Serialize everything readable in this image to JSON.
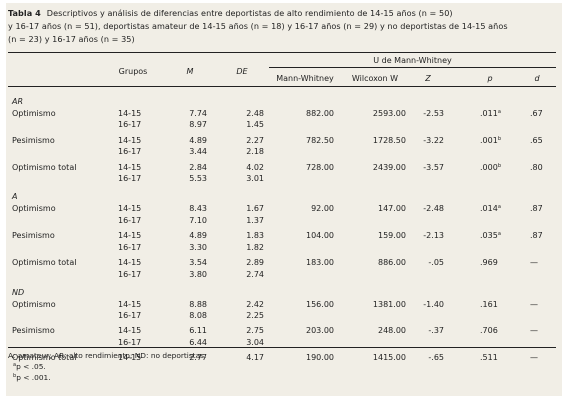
{
  "caption": {
    "label": "Tabla 4",
    "line1": "Descriptivos y análisis de diferencias entre deportistas de alto rendimiento de 14-15 años (n = 50)",
    "line2": "y 16-17 años (n = 51), deportistas amateur de 14-15 años (n = 18) y 16-17 años (n = 29) y no deportistas de 14-15 años",
    "line3": "(n = 23) y 16-17 años (n = 35)"
  },
  "header": {
    "grupos": "Grupos",
    "m": "M",
    "de": "DE",
    "u_title": "U de Mann-Whitney",
    "mann": "Mann-Whitney",
    "wilcoxon": "Wilcoxon W",
    "z": "Z",
    "p": "p",
    "d": "d"
  },
  "sections": [
    {
      "label": "AR",
      "variables": [
        {
          "name": "Optimismo",
          "rows": [
            {
              "grupo": "14-15",
              "m": "7.74",
              "de": "2.48",
              "mw": "882.00",
              "w": "2593.00",
              "z": "-2.53",
              "p": ".011",
              "sup": "a",
              "d": ".67"
            },
            {
              "grupo": "16-17",
              "m": "8.97",
              "de": "1.45"
            }
          ]
        },
        {
          "name": "Pesimismo",
          "rows": [
            {
              "grupo": "14-15",
              "m": "4.89",
              "de": "2.27",
              "mw": "782.50",
              "w": "1728.50",
              "z": "-3.22",
              "p": ".001",
              "sup": "b",
              "d": ".65"
            },
            {
              "grupo": "16-17",
              "m": "3.44",
              "de": "2.18"
            }
          ]
        },
        {
          "name": "Optimismo total",
          "rows": [
            {
              "grupo": "14-15",
              "m": "2.84",
              "de": "4.02",
              "mw": "728.00",
              "w": "2439.00",
              "z": "-3.57",
              "p": ".000",
              "sup": "b",
              "d": ".80"
            },
            {
              "grupo": "16-17",
              "m": "5.53",
              "de": "3.01"
            }
          ]
        }
      ]
    },
    {
      "label": "A",
      "variables": [
        {
          "name": "Optimismo",
          "rows": [
            {
              "grupo": "14-15",
              "m": "8.43",
              "de": "1.67",
              "mw": "92.00",
              "w": "147.00",
              "z": "-2.48",
              "p": ".014",
              "sup": "a",
              "d": ".87"
            },
            {
              "grupo": "16-17",
              "m": "7.10",
              "de": "1.37"
            }
          ]
        },
        {
          "name": "Pesimismo",
          "rows": [
            {
              "grupo": "14-15",
              "m": "4.89",
              "de": "1.83",
              "mw": "104.00",
              "w": "159.00",
              "z": "-2.13",
              "p": ".035",
              "sup": "a",
              "d": ".87"
            },
            {
              "grupo": "16-17",
              "m": "3.30",
              "de": "1.82"
            }
          ]
        },
        {
          "name": "Optimismo total",
          "rows": [
            {
              "grupo": "14-15",
              "m": "3.54",
              "de": "2.89",
              "mw": "183.00",
              "w": "886.00",
              "z": "-.05",
              "p": ".969",
              "sup": "",
              "d": "—"
            },
            {
              "grupo": "16-17",
              "m": "3.80",
              "de": "2.74"
            }
          ]
        }
      ]
    },
    {
      "label": "ND",
      "variables": [
        {
          "name": "Optimismo",
          "rows": [
            {
              "grupo": "14-15",
              "m": "8.88",
              "de": "2.42",
              "mw": "156.00",
              "w": "1381.00",
              "z": "-1.40",
              "p": ".161",
              "sup": "",
              "d": "—"
            },
            {
              "grupo": "16-17",
              "m": "8.08",
              "de": "2.25"
            }
          ]
        },
        {
          "name": "Pesimismo",
          "rows": [
            {
              "grupo": "14-15",
              "m": "6.11",
              "de": "2.75",
              "mw": "203.00",
              "w": "248.00",
              "z": "-.37",
              "p": ".706",
              "sup": "",
              "d": "—"
            },
            {
              "grupo": "16-17",
              "m": "6.44",
              "de": "3.04"
            }
          ]
        },
        {
          "name": "Optimismo total",
          "rows": [
            {
              "grupo": "14-15",
              "m": "2.77",
              "de": "4.17",
              "mw": "190.00",
              "w": "1415.00",
              "z": "-.65",
              "p": ".511",
              "sup": "",
              "d": "—"
            }
          ]
        }
      ]
    }
  ],
  "footnotes": {
    "abbrev": "A: amateur; AR: alto rendimiento; ND: no deportistas.",
    "a_sup": "a",
    "a_text": "p < .05.",
    "b_sup": "b",
    "b_text": "p < .001."
  }
}
